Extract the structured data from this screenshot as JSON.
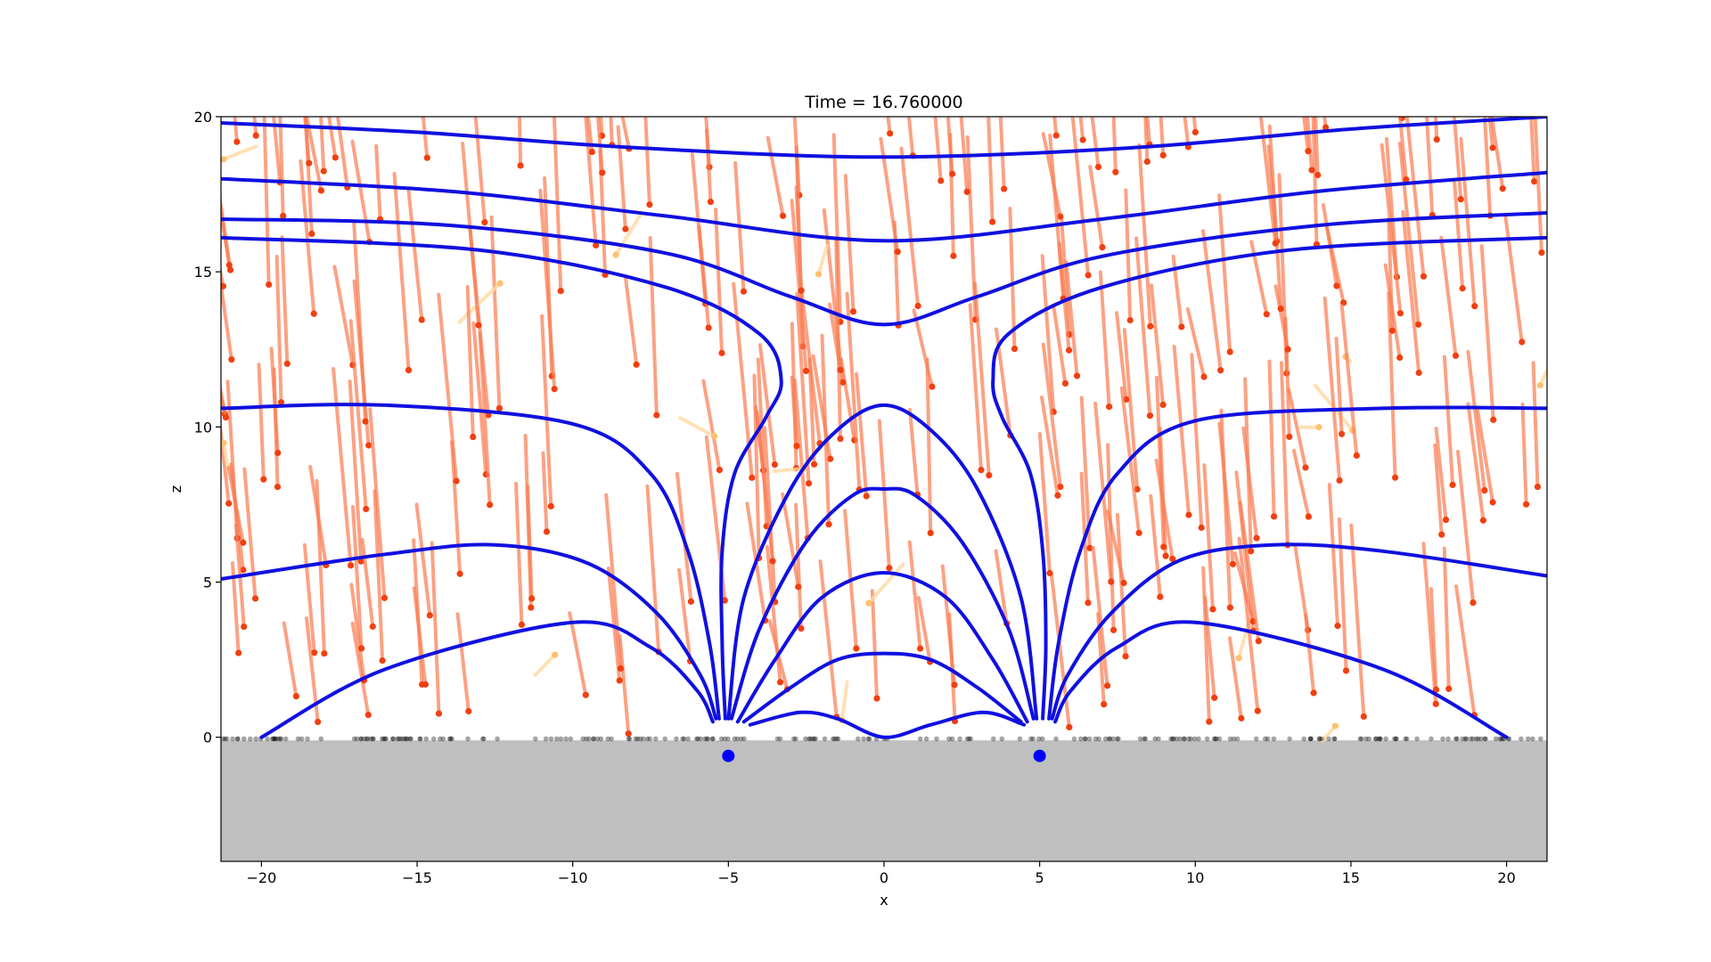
{
  "chart_data": {
    "type": "line",
    "title": "Time = 16.760000",
    "xlabel": "x",
    "ylabel": "z",
    "xlim": [
      -21.3,
      21.3
    ],
    "ylim": [
      -4,
      20
    ],
    "xticks": [
      -20,
      -15,
      -10,
      -5,
      0,
      5,
      10,
      15,
      20
    ],
    "yticks": [
      0,
      5,
      10,
      15,
      20
    ],
    "xtick_labels": [
      "−20",
      "−15",
      "−10",
      "−5",
      "0",
      "5",
      "10",
      "15",
      "20"
    ],
    "ytick_labels": [
      "0",
      "5",
      "10",
      "15",
      "20"
    ],
    "grid": false,
    "legend": "none",
    "ground": {
      "z_top": -0.1,
      "color": "#bfbfbf"
    },
    "sources": [
      {
        "x": -5,
        "z": -0.6
      },
      {
        "x": 5,
        "z": -0.6
      }
    ],
    "field_lines": [
      [
        [
          -21.3,
          19.8
        ],
        [
          -15,
          19.5
        ],
        [
          -8,
          19.0
        ],
        [
          0,
          18.7
        ],
        [
          8,
          19.0
        ],
        [
          15,
          19.6
        ],
        [
          21.3,
          20.0
        ]
      ],
      [
        [
          -21.3,
          18.0
        ],
        [
          -14,
          17.6
        ],
        [
          -7,
          16.8
        ],
        [
          0,
          16.0
        ],
        [
          7,
          16.7
        ],
        [
          14,
          17.6
        ],
        [
          21.3,
          18.2
        ]
      ],
      [
        [
          -21.3,
          16.7
        ],
        [
          -14,
          16.5
        ],
        [
          -7,
          15.6
        ],
        [
          -3,
          14.2
        ],
        [
          0,
          13.3
        ],
        [
          3,
          14.2
        ],
        [
          7,
          15.5
        ],
        [
          14,
          16.5
        ],
        [
          21.3,
          16.9
        ]
      ],
      [
        [
          -21.3,
          16.1
        ],
        [
          -13,
          15.7
        ],
        [
          -7,
          14.5
        ],
        [
          -4,
          13.0
        ],
        [
          -3.3,
          11.5
        ],
        [
          -3.8,
          10.3
        ],
        [
          -4.8,
          8.5
        ],
        [
          -5.2,
          6.0
        ],
        [
          -5.2,
          3.0
        ],
        [
          -5.1,
          0.6
        ]
      ],
      [
        [
          21.3,
          16.1
        ],
        [
          13,
          15.7
        ],
        [
          7,
          14.5
        ],
        [
          4,
          13.0
        ],
        [
          3.5,
          11.5
        ],
        [
          3.8,
          10.3
        ],
        [
          4.7,
          8.5
        ],
        [
          5.1,
          6.0
        ],
        [
          5.2,
          3.0
        ],
        [
          5.1,
          0.6
        ]
      ],
      [
        [
          -21.3,
          10.6
        ],
        [
          -16,
          10.7
        ],
        [
          -10,
          10.1
        ],
        [
          -7.5,
          8.5
        ],
        [
          -6.3,
          6.0
        ],
        [
          -5.6,
          3.0
        ],
        [
          -5.3,
          0.6
        ]
      ],
      [
        [
          21.3,
          10.6
        ],
        [
          16,
          10.6
        ],
        [
          10,
          10.2
        ],
        [
          7.5,
          8.5
        ],
        [
          6.3,
          6.0
        ],
        [
          5.6,
          3.0
        ],
        [
          5.3,
          0.6
        ]
      ],
      [
        [
          -21.3,
          5.1
        ],
        [
          -16,
          5.9
        ],
        [
          -12.5,
          6.2
        ],
        [
          -9.5,
          5.6
        ],
        [
          -7.3,
          4.0
        ],
        [
          -5.9,
          2.0
        ],
        [
          -5.4,
          0.6
        ]
      ],
      [
        [
          21.3,
          5.2
        ],
        [
          16,
          6.0
        ],
        [
          12.5,
          6.2
        ],
        [
          9.5,
          5.7
        ],
        [
          7.3,
          4.0
        ],
        [
          5.9,
          2.0
        ],
        [
          5.4,
          0.6
        ]
      ],
      [
        [
          -20.0,
          0.0
        ],
        [
          -16,
          2.2
        ],
        [
          -10,
          3.7
        ],
        [
          -7.5,
          2.9
        ],
        [
          -6,
          1.5
        ],
        [
          -5.5,
          0.5
        ]
      ],
      [
        [
          20.0,
          0.0
        ],
        [
          16,
          2.2
        ],
        [
          10,
          3.7
        ],
        [
          7.5,
          2.9
        ],
        [
          6,
          1.5
        ],
        [
          5.5,
          0.5
        ]
      ],
      [
        [
          -5.0,
          0.6
        ],
        [
          -4.5,
          4.5
        ],
        [
          -3,
          8.0
        ],
        [
          -1.5,
          9.9
        ],
        [
          0,
          10.7
        ],
        [
          1.5,
          9.9
        ],
        [
          3,
          8.0
        ],
        [
          4.4,
          4.5
        ],
        [
          4.9,
          0.6
        ]
      ],
      [
        [
          -4.9,
          0.6
        ],
        [
          -4,
          3.5
        ],
        [
          -2.5,
          6.3
        ],
        [
          -1.0,
          7.8
        ],
        [
          0,
          8.0
        ],
        [
          1.0,
          7.8
        ],
        [
          2.5,
          6.3
        ],
        [
          4,
          3.5
        ],
        [
          4.8,
          0.6
        ]
      ],
      [
        [
          -4.7,
          0.5
        ],
        [
          -3.5,
          2.5
        ],
        [
          -2,
          4.5
        ],
        [
          0,
          5.3
        ],
        [
          2,
          4.5
        ],
        [
          3.5,
          2.5
        ],
        [
          4.6,
          0.5
        ]
      ],
      [
        [
          -4.5,
          0.5
        ],
        [
          -3,
          1.6
        ],
        [
          -1.5,
          2.5
        ],
        [
          0,
          2.7
        ],
        [
          1.5,
          2.5
        ],
        [
          3,
          1.6
        ],
        [
          4.4,
          0.5
        ]
      ],
      [
        [
          -4.3,
          0.4
        ],
        [
          -2.7,
          0.8
        ],
        [
          -1.5,
          0.6
        ],
        [
          0,
          0.0
        ],
        [
          1.5,
          0.4
        ],
        [
          3.2,
          0.8
        ],
        [
          4.5,
          0.4
        ]
      ]
    ]
  }
}
